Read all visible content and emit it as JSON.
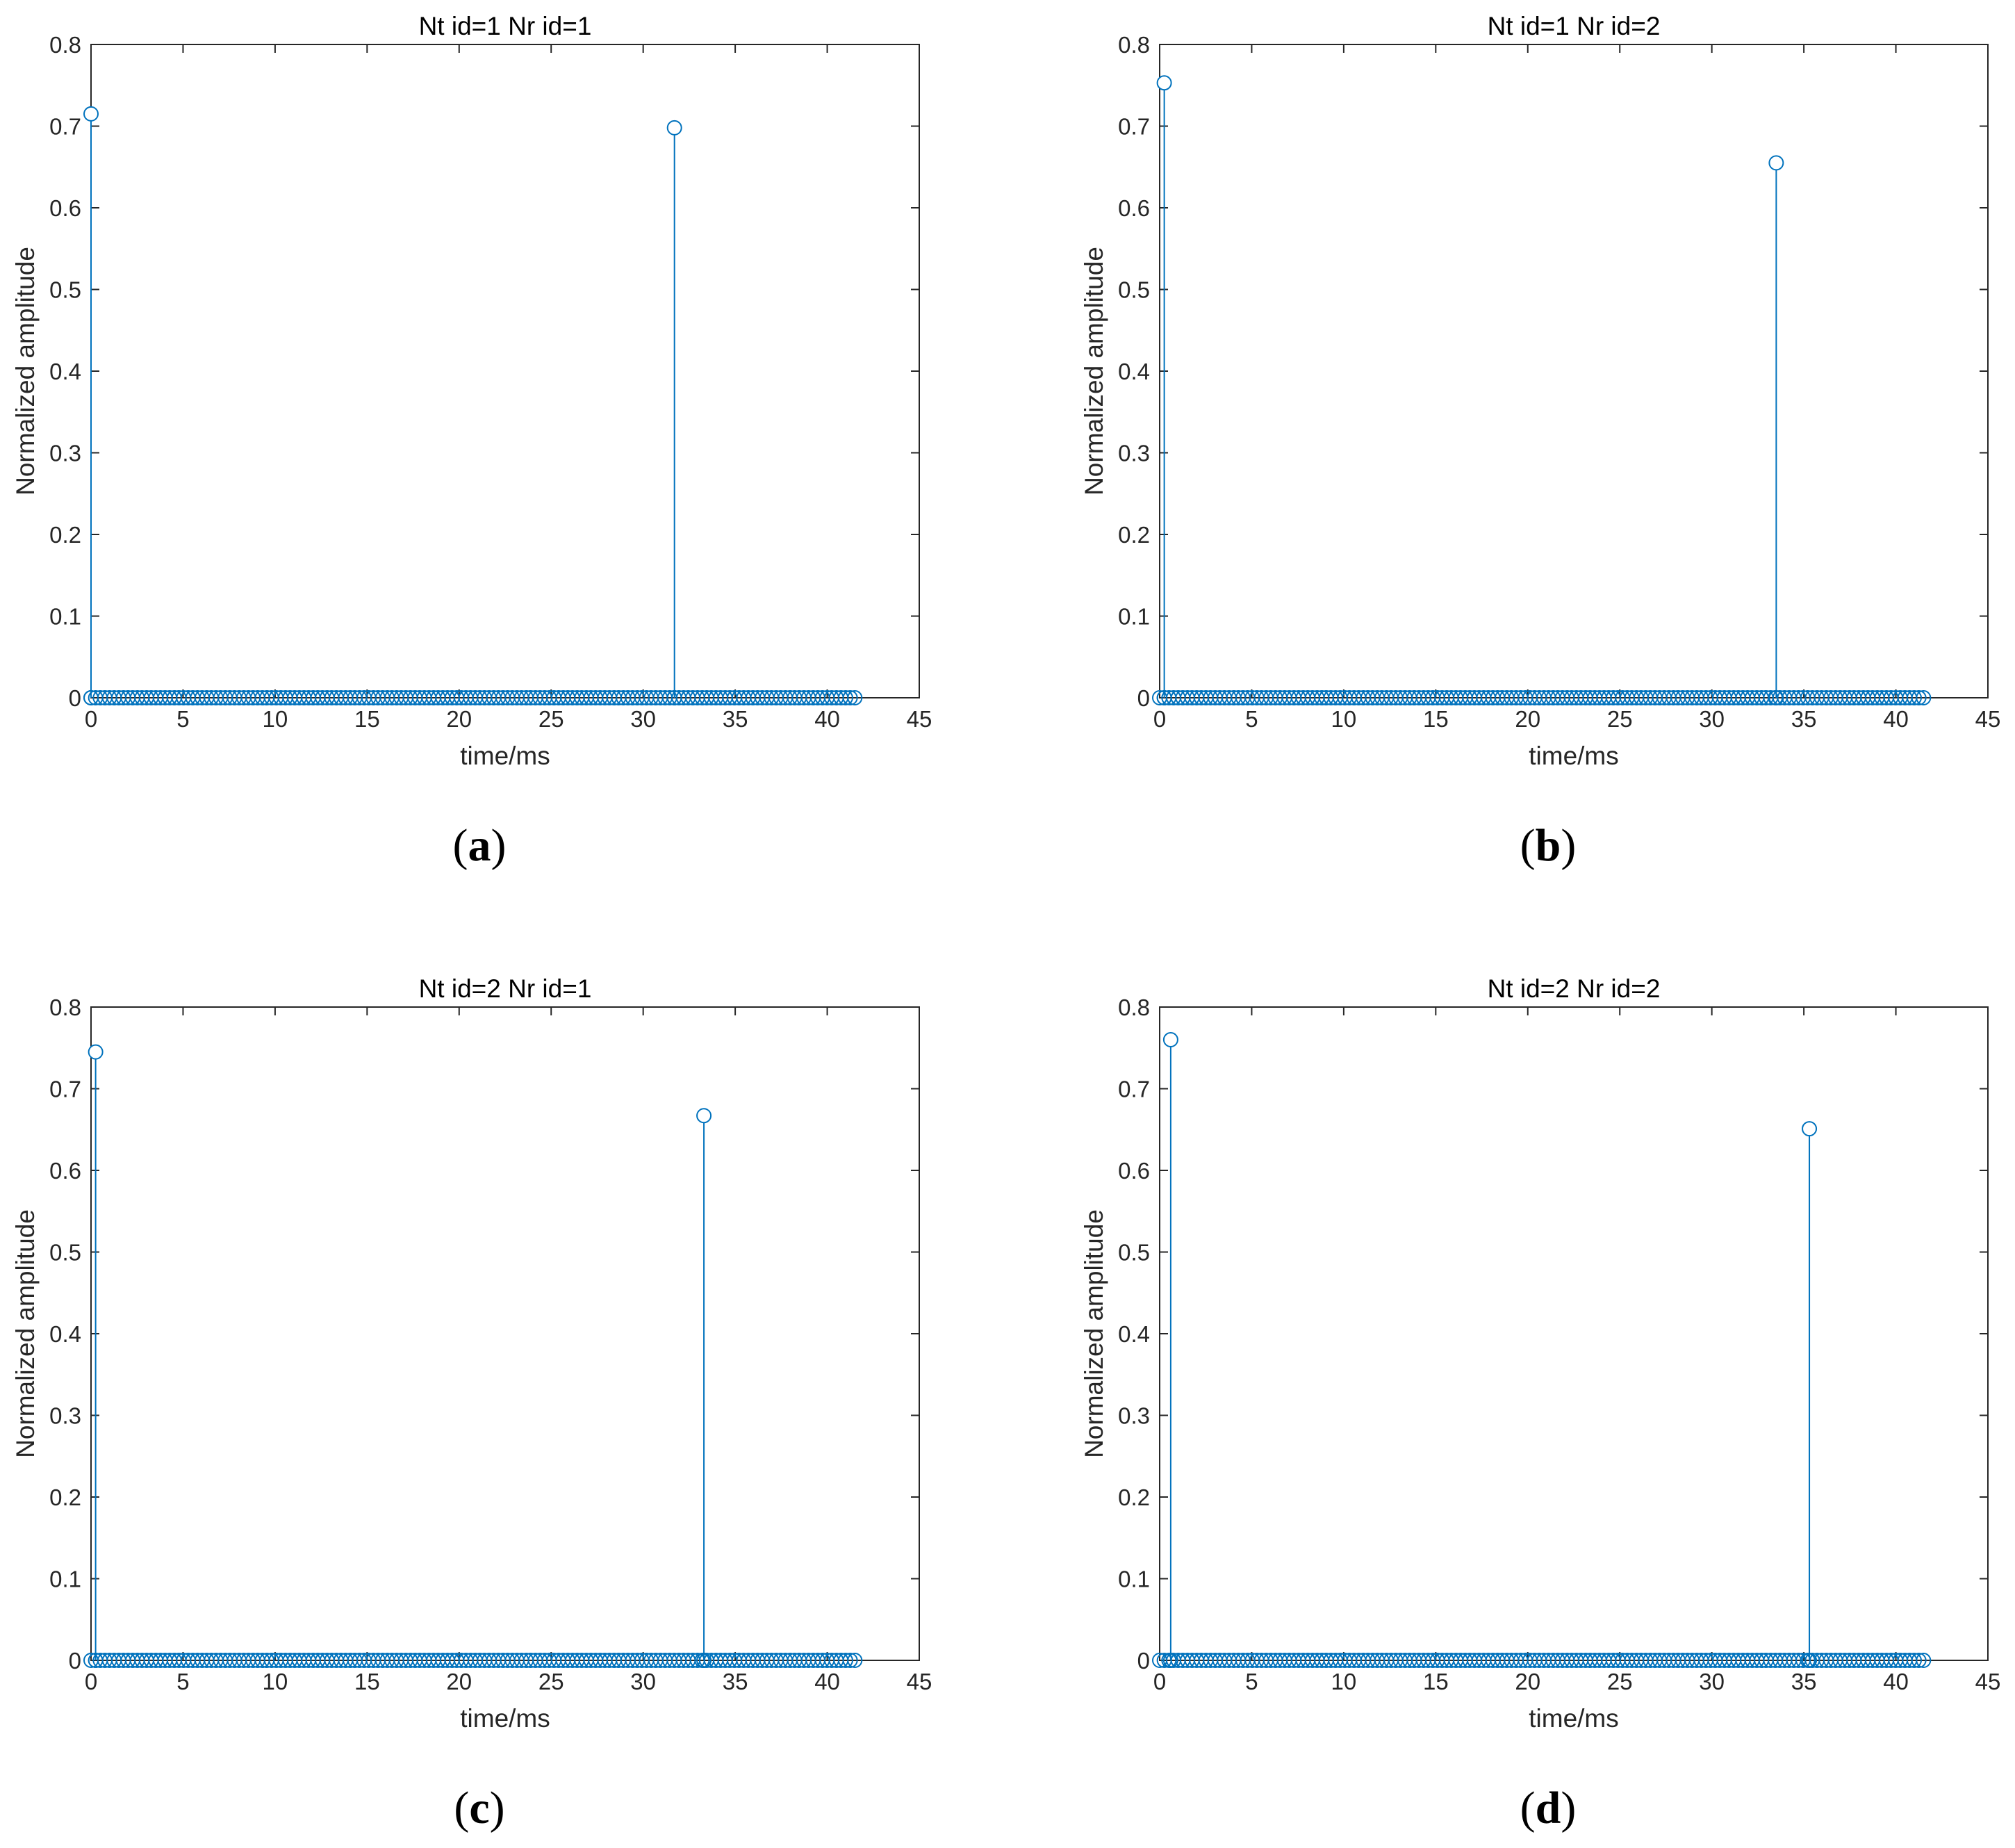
{
  "style": {
    "series_color": "#0072BD",
    "axis_color": "#262626"
  },
  "chart_data": [
    {
      "id": "a",
      "type": "stem",
      "caption_letter": "a",
      "title": "Nt id=1 Nr id=1",
      "xlabel": "time/ms",
      "ylabel": "Normalized amplitude",
      "xlim": [
        0,
        45
      ],
      "ylim": [
        0,
        0.8
      ],
      "xticks": [
        "0",
        "5",
        "10",
        "15",
        "20",
        "25",
        "30",
        "35",
        "40",
        "45"
      ],
      "yticks": [
        "0",
        "0.1",
        "0.2",
        "0.3",
        "0.4",
        "0.5",
        "0.6",
        "0.7",
        "0.8"
      ],
      "baseline_start": 0.0,
      "baseline_end": 41.5,
      "baseline_count": 166,
      "peaks": [
        {
          "x": 0.0,
          "y": 0.715
        },
        {
          "x": 31.7,
          "y": 0.698
        }
      ]
    },
    {
      "id": "b",
      "type": "stem",
      "caption_letter": "b",
      "title": "Nt id=1 Nr id=2",
      "xlabel": "time/ms",
      "ylabel": "Normalized amplitude",
      "xlim": [
        0,
        45
      ],
      "ylim": [
        0,
        0.8
      ],
      "xticks": [
        "0",
        "5",
        "10",
        "15",
        "20",
        "25",
        "30",
        "35",
        "40",
        "45"
      ],
      "yticks": [
        "0",
        "0.1",
        "0.2",
        "0.3",
        "0.4",
        "0.5",
        "0.6",
        "0.7",
        "0.8"
      ],
      "baseline_start": 0.0,
      "baseline_end": 41.5,
      "baseline_count": 166,
      "peaks": [
        {
          "x": 0.25,
          "y": 0.753
        },
        {
          "x": 33.5,
          "y": 0.655
        }
      ]
    },
    {
      "id": "c",
      "type": "stem",
      "caption_letter": "c",
      "title": "Nt id=2 Nr id=1",
      "xlabel": "time/ms",
      "ylabel": "Normalized amplitude",
      "xlim": [
        0,
        45
      ],
      "ylim": [
        0,
        0.8
      ],
      "xticks": [
        "0",
        "5",
        "10",
        "15",
        "20",
        "25",
        "30",
        "35",
        "40",
        "45"
      ],
      "yticks": [
        "0",
        "0.1",
        "0.2",
        "0.3",
        "0.4",
        "0.5",
        "0.6",
        "0.7",
        "0.8"
      ],
      "baseline_start": 0.0,
      "baseline_end": 41.5,
      "baseline_count": 166,
      "peaks": [
        {
          "x": 0.25,
          "y": 0.745
        },
        {
          "x": 33.3,
          "y": 0.667
        }
      ]
    },
    {
      "id": "d",
      "type": "stem",
      "caption_letter": "d",
      "title": "Nt id=2 Nr id=2",
      "xlabel": "time/ms",
      "ylabel": "Normalized amplitude",
      "xlim": [
        0,
        45
      ],
      "ylim": [
        0,
        0.8
      ],
      "xticks": [
        "0",
        "5",
        "10",
        "15",
        "20",
        "25",
        "30",
        "35",
        "40",
        "45"
      ],
      "yticks": [
        "0",
        "0.1",
        "0.2",
        "0.3",
        "0.4",
        "0.5",
        "0.6",
        "0.7",
        "0.8"
      ],
      "baseline_start": 0.0,
      "baseline_end": 41.5,
      "baseline_count": 166,
      "peaks": [
        {
          "x": 0.6,
          "y": 0.76
        },
        {
          "x": 35.3,
          "y": 0.651
        }
      ]
    }
  ]
}
